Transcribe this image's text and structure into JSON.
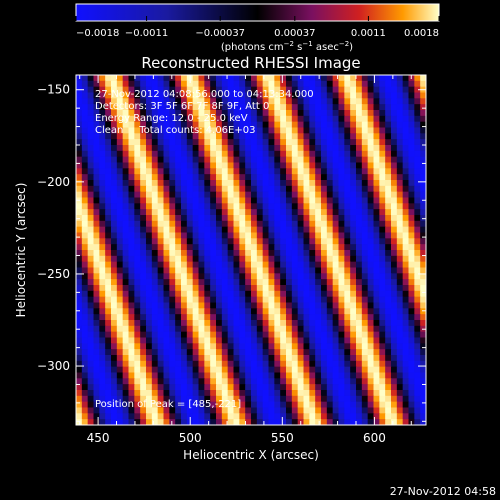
{
  "chart_data": {
    "type": "heatmap",
    "title": "Reconstructed RHESSI Image",
    "xlabel": "Heliocentric X (arcsec)",
    "ylabel": "Heliocentric Y (arcsec)",
    "xlim": [
      438,
      628
    ],
    "ylim": [
      -332,
      -142
    ],
    "x_ticks": [
      450,
      500,
      550,
      600
    ],
    "x_tick_labels": [
      "450",
      "500",
      "550",
      "600"
    ],
    "y_ticks": [
      -150,
      -200,
      -250,
      -300
    ],
    "y_tick_labels": [
      "−150",
      "−200",
      "−250",
      "−300"
    ],
    "colorbar": {
      "min": -0.0018,
      "max": 0.0018,
      "ticks": [
        -0.0018,
        -0.0011,
        -0.00037,
        0.00037,
        0.0011,
        0.0018
      ],
      "tick_labels": [
        "−0.0018",
        "−0.0011",
        "−0.00037",
        "0.00037",
        "0.0011",
        "0.0018"
      ],
      "unit_label_parts": [
        "(photons cm",
        "−2",
        " s",
        "−1",
        " asec",
        "−2",
        ")"
      ]
    },
    "annotations": [
      "27-Nov-2012 04:08:56.000 to 04:13:34.000",
      "Detectors: 3F 5F 6F 7F 8F 9F, Att 0",
      "Energy Range: 12.0 - 25.0 keV",
      "Clean     Total counts: 4.06E+03"
    ],
    "peak_label": "Position of Peak = [485,-221]",
    "peak_position": [
      485,
      -221
    ],
    "fringe_pattern": {
      "amplitude": 0.0018,
      "period_arcsec": 42.7,
      "ref_x": 485,
      "ref_y": -221,
      "slope_dx_per_dy": -0.36
    }
  },
  "footer": {
    "timestamp": "27-Nov-2012 04:58"
  }
}
